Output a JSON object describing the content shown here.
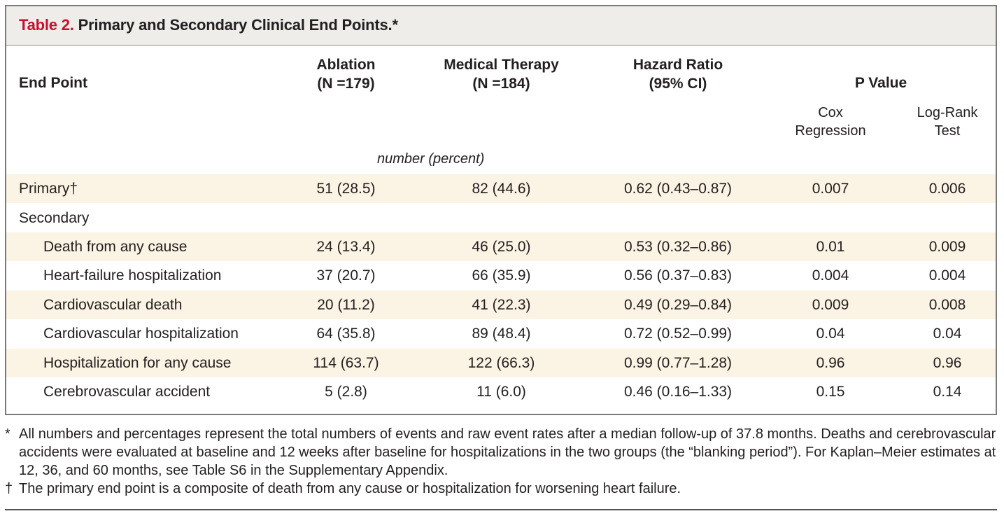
{
  "table": {
    "title_label": "Table 2.",
    "title_text": "Primary and Secondary Clinical End Points.*",
    "headers": {
      "end_point": "End Point",
      "ablation": "Ablation",
      "ablation_n": "(N =179)",
      "medical": "Medical Therapy",
      "medical_n": "(N =184)",
      "hazard": "Hazard Ratio",
      "hazard_ci": "(95% CI)",
      "pvalue": "P Value",
      "cox_1": "Cox",
      "cox_2": "Regression",
      "log_1": "Log-Rank",
      "log_2": "Test"
    },
    "units": "number (percent)",
    "rows": [
      {
        "label": "Primary†",
        "ablation": "51 (28.5)",
        "medical": "82 (44.6)",
        "hr": "0.62 (0.43–0.87)",
        "cox": "0.007",
        "logrank": "0.006"
      },
      {
        "label": "Secondary",
        "ablation": "",
        "medical": "",
        "hr": "",
        "cox": "",
        "logrank": ""
      },
      {
        "label": "Death from any cause",
        "ablation": "24 (13.4)",
        "medical": "46 (25.0)",
        "hr": "0.53 (0.32–0.86)",
        "cox": "0.01",
        "logrank": "0.009"
      },
      {
        "label": "Heart-failure hospitalization",
        "ablation": "37 (20.7)",
        "medical": "66 (35.9)",
        "hr": "0.56 (0.37–0.83)",
        "cox": "0.004",
        "logrank": "0.004"
      },
      {
        "label": "Cardiovascular death",
        "ablation": "20 (11.2)",
        "medical": "41 (22.3)",
        "hr": "0.49 (0.29–0.84)",
        "cox": "0.009",
        "logrank": "0.008"
      },
      {
        "label": "Cardiovascular hospitalization",
        "ablation": "64 (35.8)",
        "medical": "89 (48.4)",
        "hr": "0.72 (0.52–0.99)",
        "cox": "0.04",
        "logrank": "0.04"
      },
      {
        "label": "Hospitalization for any cause",
        "ablation": "114 (63.7)",
        "medical": "122 (66.3)",
        "hr": "0.99 (0.77–1.28)",
        "cox": "0.96",
        "logrank": "0.96"
      },
      {
        "label": "Cerebrovascular accident",
        "ablation": "5 (2.8)",
        "medical": "11 (6.0)",
        "hr": "0.46 (0.16–1.33)",
        "cox": "0.15",
        "logrank": "0.14"
      }
    ]
  },
  "footnotes": {
    "star_mark": "*",
    "star_text": "All numbers and percentages represent the total numbers of events and raw event rates after a median follow-up of 37.8 months. Deaths and cerebrovascular accidents were evaluated at baseline and 12 weeks after baseline for hospitalizations in the two groups (the “blanking period”). For Kaplan–Meier estimates at 12, 36, and 60 months, see Table S6 in the Supplementary Appendix.",
    "dagger_mark": "†",
    "dagger_text": "The primary end point is a composite of death from any cause or hospitalization for worsening heart failure."
  },
  "colors": {
    "title_label": "#c8102e",
    "title_bar_bg": "#efedea",
    "row_shade": "#fbf3e3"
  }
}
